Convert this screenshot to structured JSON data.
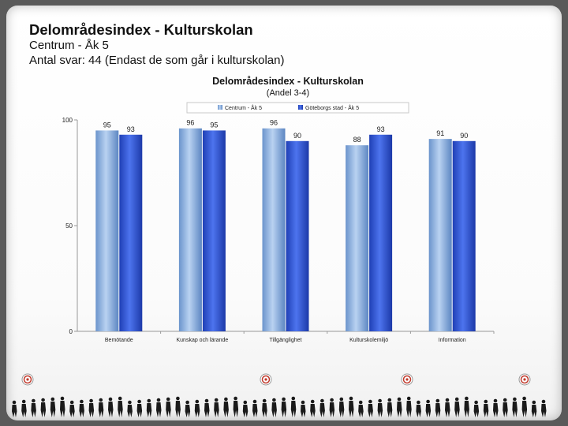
{
  "slide": {
    "title": "Delområdesindex - Kulturskolan",
    "subtitle_line1": "Centrum - Åk 5",
    "subtitle_line2": "Antal svar: 44 (Endast de som går i kulturskolan)"
  },
  "chart_data": {
    "type": "bar",
    "title": "Delområdesindex  - Kulturskolan",
    "subtitle": "(Andel 3-4)",
    "categories": [
      "Bemötande",
      "Kunskap och lärande",
      "Tillgänglighet",
      "Kulturskolemiljö",
      "Information"
    ],
    "series": [
      {
        "name": "Centrum - Åk 5",
        "values": [
          95,
          96,
          96,
          88,
          91
        ],
        "color": "#8fb4e3"
      },
      {
        "name": "Göteborgs stad - Åk 5",
        "values": [
          93,
          95,
          90,
          93,
          90
        ],
        "color": "#2f55d4"
      }
    ],
    "ylim": [
      0,
      100
    ],
    "yticks": [
      0,
      50,
      100
    ],
    "grid": false,
    "legend_position": "top",
    "data_labels": true
  },
  "colors": {
    "background": "#5a5a5a",
    "slide": "#ffffff",
    "series1": "#8fb4e3",
    "series2": "#2f55d4"
  }
}
